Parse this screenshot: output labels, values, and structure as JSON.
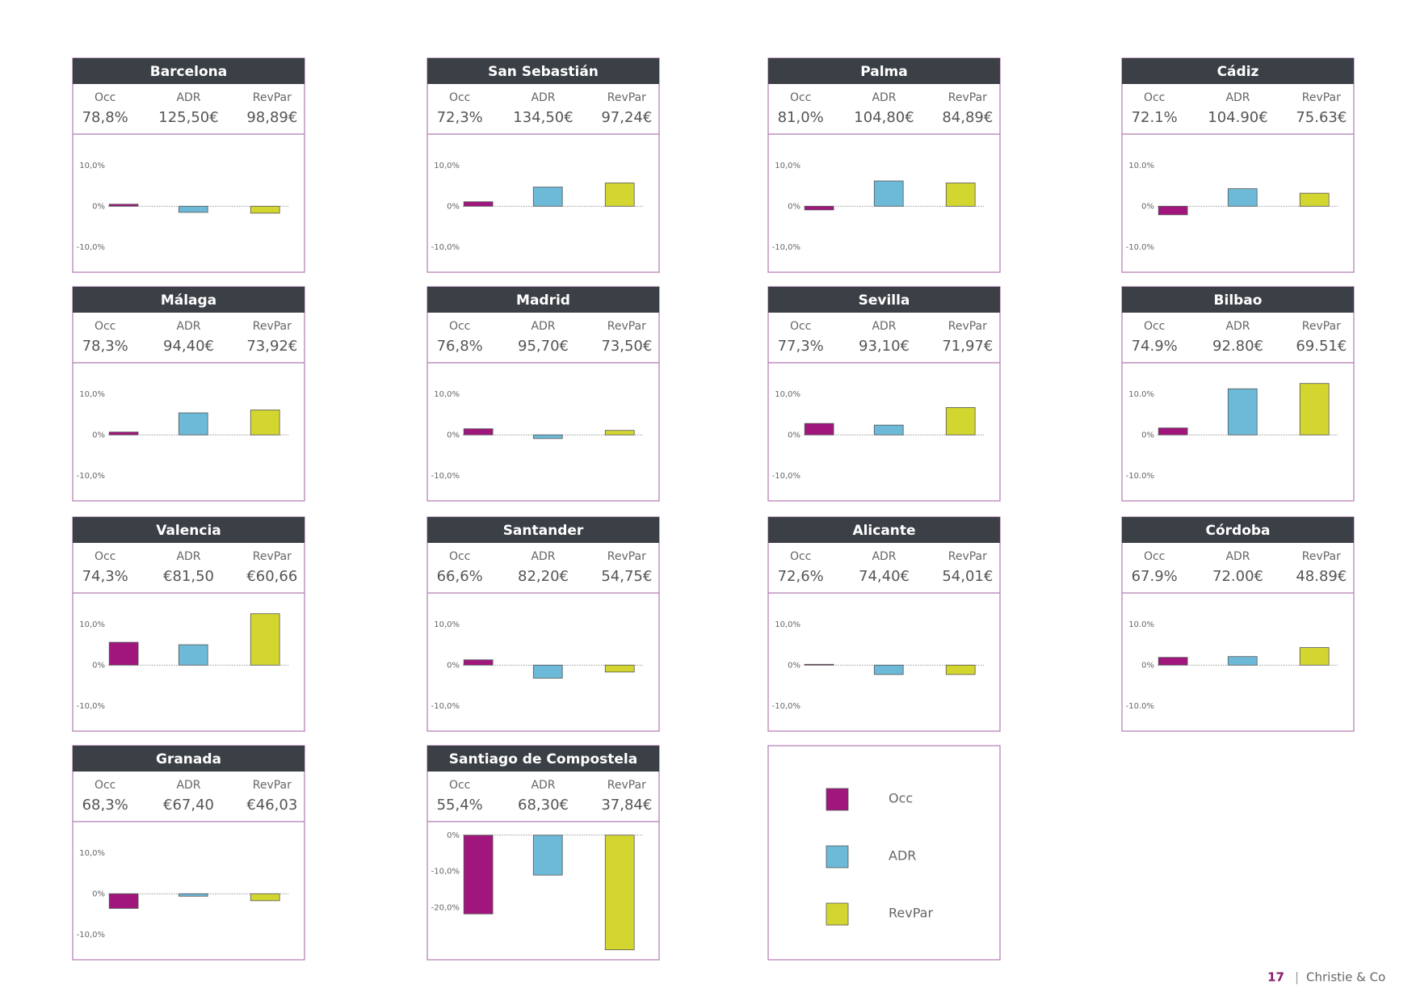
{
  "chart_data": [
    {
      "type": "bar",
      "title": "Barcelona",
      "stat_labels": [
        "Occ",
        "ADR",
        "RevPar"
      ],
      "stat_values": [
        "78,8%",
        "125,50€",
        "98,89€"
      ],
      "values": [
        0.5,
        -1.5,
        -1.7
      ],
      "ylim": [
        -15,
        16.5
      ],
      "yticks": [
        {
          "value": 10,
          "label": "10,0%"
        },
        {
          "value": 0,
          "label": "0%"
        },
        {
          "value": -10,
          "label": "-10,0%"
        }
      ]
    },
    {
      "type": "bar",
      "title": "San Sebastián",
      "stat_labels": [
        "Occ",
        "ADR",
        "RevPar"
      ],
      "stat_values": [
        "72,3%",
        "134,50€",
        "97,24€"
      ],
      "values": [
        1.1,
        4.7,
        5.7
      ],
      "ylim": [
        -15,
        16.5
      ],
      "yticks": [
        {
          "value": 10,
          "label": "10,0%"
        },
        {
          "value": 0,
          "label": "0%"
        },
        {
          "value": -10,
          "label": "-10,0%"
        }
      ]
    },
    {
      "type": "bar",
      "title": "Palma",
      "stat_labels": [
        "Occ",
        "ADR",
        "RevPar"
      ],
      "stat_values": [
        "81,0%",
        "104,80€",
        "84,89€"
      ],
      "values": [
        -0.9,
        6.2,
        5.7
      ],
      "ylim": [
        -15,
        16.5
      ],
      "yticks": [
        {
          "value": 10,
          "label": "10,0%"
        },
        {
          "value": 0,
          "label": "0%"
        },
        {
          "value": -10,
          "label": "-10,0%"
        }
      ]
    },
    {
      "type": "bar",
      "title": "Cádiz",
      "stat_labels": [
        "Occ",
        "ADR",
        "RevPar"
      ],
      "stat_values": [
        "72.1%",
        "104.90€",
        "75.63€"
      ],
      "values": [
        -2.1,
        4.3,
        3.2
      ],
      "ylim": [
        -15,
        16.5
      ],
      "yticks": [
        {
          "value": 10,
          "label": "10.0%"
        },
        {
          "value": 0,
          "label": "0%"
        },
        {
          "value": -10,
          "label": "-10.0%"
        }
      ]
    },
    {
      "type": "bar",
      "title": "Málaga",
      "stat_labels": [
        "Occ",
        "ADR",
        "RevPar"
      ],
      "stat_values": [
        "78,3%",
        "94,40€",
        "73,92€"
      ],
      "values": [
        0.7,
        5.4,
        6.1
      ],
      "ylim": [
        -15,
        16.5
      ],
      "yticks": [
        {
          "value": 10,
          "label": "10,0%"
        },
        {
          "value": 0,
          "label": "0%"
        },
        {
          "value": -10,
          "label": "-10,0%"
        }
      ]
    },
    {
      "type": "bar",
      "title": "Madrid",
      "stat_labels": [
        "Occ",
        "ADR",
        "RevPar"
      ],
      "stat_values": [
        "76,8%",
        "95,70€",
        "73,50€"
      ],
      "values": [
        1.5,
        -0.9,
        1.1
      ],
      "ylim": [
        -15,
        16.5
      ],
      "yticks": [
        {
          "value": 10,
          "label": "10,0%"
        },
        {
          "value": 0,
          "label": "0%"
        },
        {
          "value": -10,
          "label": "-10,0%"
        }
      ]
    },
    {
      "type": "bar",
      "title": "Sevilla",
      "stat_labels": [
        "Occ",
        "ADR",
        "RevPar"
      ],
      "stat_values": [
        "77,3%",
        "93,10€",
        "71,97€"
      ],
      "values": [
        2.8,
        2.4,
        6.7
      ],
      "ylim": [
        -15,
        16.5
      ],
      "yticks": [
        {
          "value": 10,
          "label": "10,0%"
        },
        {
          "value": 0,
          "label": "0%"
        },
        {
          "value": -10,
          "label": "-10,0%"
        }
      ]
    },
    {
      "type": "bar",
      "title": "Bilbao",
      "stat_labels": [
        "Occ",
        "ADR",
        "RevPar"
      ],
      "stat_values": [
        "74.9%",
        "92.80€",
        "69.51€"
      ],
      "values": [
        1.7,
        11.3,
        12.6
      ],
      "ylim": [
        -15,
        16.5
      ],
      "yticks": [
        {
          "value": 10,
          "label": "10.0%"
        },
        {
          "value": 0,
          "label": "0%"
        },
        {
          "value": -10,
          "label": "-10.0%"
        }
      ]
    },
    {
      "type": "bar",
      "title": "Valencia",
      "stat_labels": [
        "Occ",
        "ADR",
        "RevPar"
      ],
      "stat_values": [
        "74,3%",
        "€81,50",
        "€60,66"
      ],
      "values": [
        5.6,
        5.0,
        12.6
      ],
      "ylim": [
        -15,
        16.5
      ],
      "yticks": [
        {
          "value": 10,
          "label": "10,0%"
        },
        {
          "value": 0,
          "label": "0%"
        },
        {
          "value": -10,
          "label": "-10,0%"
        }
      ]
    },
    {
      "type": "bar",
      "title": "Santander",
      "stat_labels": [
        "Occ",
        "ADR",
        "RevPar"
      ],
      "stat_values": [
        "66,6%",
        "82,20€",
        "54,75€"
      ],
      "values": [
        1.3,
        -3.2,
        -1.7
      ],
      "ylim": [
        -15,
        16.5
      ],
      "yticks": [
        {
          "value": 10,
          "label": "10,0%"
        },
        {
          "value": 0,
          "label": "0%"
        },
        {
          "value": -10,
          "label": "-10,0%"
        }
      ]
    },
    {
      "type": "bar",
      "title": "Alicante",
      "stat_labels": [
        "Occ",
        "ADR",
        "RevPar"
      ],
      "stat_values": [
        "72,6%",
        "74,40€",
        "54,01€"
      ],
      "values": [
        0.2,
        -2.3,
        -2.3
      ],
      "ylim": [
        -15,
        16.5
      ],
      "yticks": [
        {
          "value": 10,
          "label": "10,0%"
        },
        {
          "value": 0,
          "label": "0%"
        },
        {
          "value": -10,
          "label": "-10,0%"
        }
      ]
    },
    {
      "type": "bar",
      "title": "Córdoba",
      "stat_labels": [
        "Occ",
        "ADR",
        "RevPar"
      ],
      "stat_values": [
        "67.9%",
        "72.00€",
        "48.89€"
      ],
      "values": [
        1.9,
        2.1,
        4.3
      ],
      "ylim": [
        -15,
        16.5
      ],
      "yticks": [
        {
          "value": 10,
          "label": "10.0%"
        },
        {
          "value": 0,
          "label": "0%"
        },
        {
          "value": -10,
          "label": "-10.0%"
        }
      ]
    },
    {
      "type": "bar",
      "title": "Granada",
      "stat_labels": [
        "Occ",
        "ADR",
        "RevPar"
      ],
      "stat_values": [
        "68,3%",
        "€67,40",
        "€46,03"
      ],
      "values": [
        -3.6,
        -0.6,
        -1.7
      ],
      "ylim": [
        -15,
        16.5
      ],
      "yticks": [
        {
          "value": 10,
          "label": "10,0%"
        },
        {
          "value": 0,
          "label": "0%"
        },
        {
          "value": -10,
          "label": "-10,0%"
        }
      ]
    },
    {
      "type": "bar",
      "title": "Santiago de Compostela",
      "stat_labels": [
        "Occ",
        "ADR",
        "RevPar"
      ],
      "stat_values": [
        "55,4%",
        "68,30€",
        "37,84€"
      ],
      "values": [
        -21.7,
        -11.0,
        -31.6
      ],
      "ylim": [
        -33,
        2.4
      ],
      "yticks": [
        {
          "value": 0,
          "label": "0%"
        },
        {
          "value": -10,
          "label": "-10,0%"
        },
        {
          "value": -20,
          "label": "-20,0%"
        }
      ]
    }
  ],
  "legend": {
    "series": [
      {
        "name": "Occ",
        "color": "#a0167c"
      },
      {
        "name": "ADR",
        "color": "#6cb9d8"
      },
      {
        "name": "RevPar",
        "color": "#d4d630"
      }
    ]
  },
  "footer": {
    "page": "17",
    "brand": "Christie & Co"
  }
}
